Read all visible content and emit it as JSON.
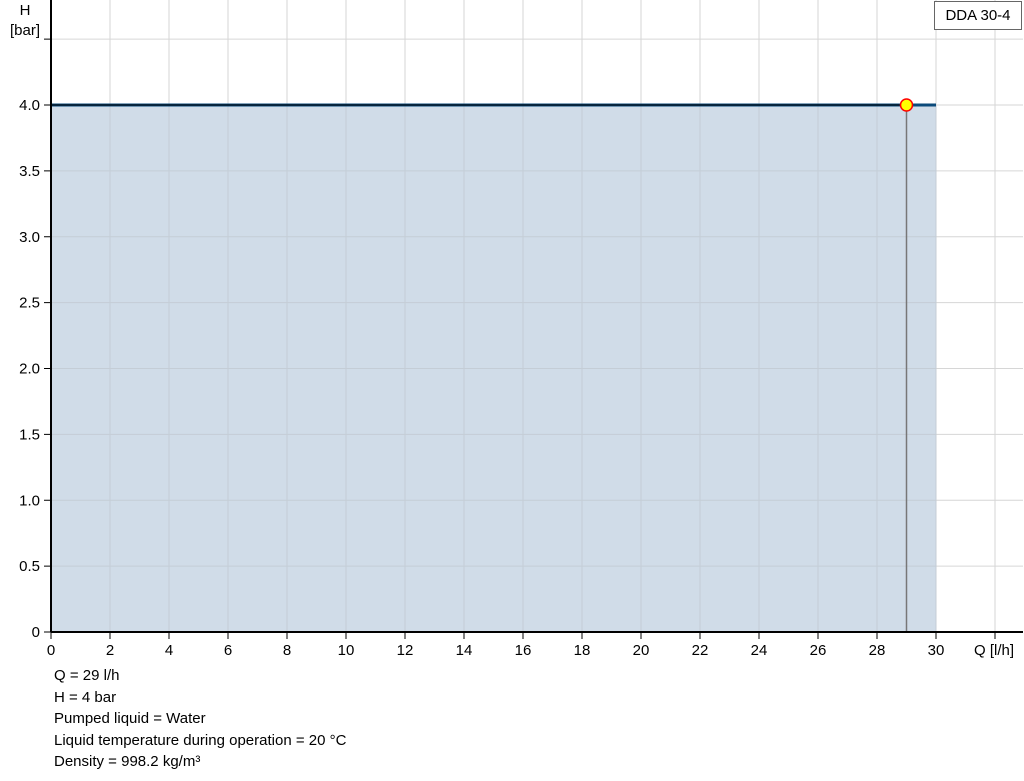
{
  "chart_data": {
    "type": "area",
    "title": "",
    "xlabel": "Q [l/h]",
    "ylabel_line1": "H",
    "ylabel_line2": "[bar]",
    "xlim": [
      0,
      33
    ],
    "ylim": [
      0,
      4.8
    ],
    "x_ticks": [
      0,
      2,
      4,
      6,
      8,
      10,
      12,
      14,
      16,
      18,
      20,
      22,
      24,
      26,
      28,
      30
    ],
    "y_ticks": [
      0,
      0.5,
      1.0,
      1.5,
      2.0,
      2.5,
      3.0,
      3.5,
      4.0
    ],
    "y_tick_labels": [
      "0",
      "0.5",
      "1.0",
      "1.5",
      "2.0",
      "2.5",
      "3.0",
      "3.5",
      "4.0"
    ],
    "y_ticks_unlabeled": [
      4.5
    ],
    "grid": true,
    "legend": {
      "position": "top-right",
      "entries": [
        "DDA 30-4"
      ]
    },
    "series": [
      {
        "name": "DDA 30-4",
        "x": [
          0,
          30
        ],
        "y": [
          4,
          4
        ],
        "color": "#0b4a7a",
        "fill": "#d0dce8"
      }
    ],
    "operating_point": {
      "x": 29,
      "y": 4,
      "color": "#ffff00",
      "stroke": "#ff0000"
    }
  },
  "info": {
    "q": "Q = 29 l/h",
    "h": "H = 4 bar",
    "liquid": "Pumped liquid = Water",
    "temp": "Liquid temperature during operation = 20 °C",
    "density": "Density = 998.2 kg/m³"
  }
}
